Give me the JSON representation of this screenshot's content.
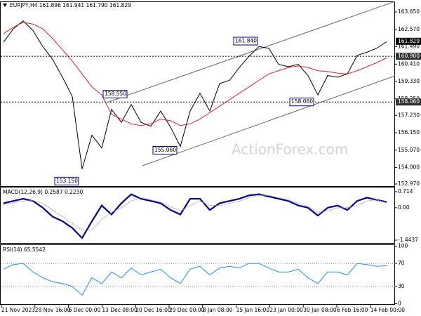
{
  "chart_data": [
    {
      "type": "line",
      "title": "EURJPY,H4 161.896 161.941 161.790 161.829",
      "watermark": "ActionForex.com",
      "series": [
        {
          "color": "#000000",
          "values": [
            161.78,
            162.6,
            163.1,
            162.5,
            161.5,
            160.7,
            159.6,
            158.4,
            153.9,
            156.0,
            155.2,
            157.6,
            156.8,
            157.9,
            156.8,
            156.55,
            157.5,
            156.5,
            155.3,
            157.5,
            158.6,
            157.5,
            159.2,
            159.4,
            160.2,
            160.9,
            161.5,
            161.4,
            160.4,
            160.25,
            160.4,
            159.7,
            158.5,
            159.7,
            159.6,
            159.8,
            160.95,
            161.15,
            161.4,
            161.8
          ]
        },
        {
          "color": "#e8202a",
          "values": [
            162.3,
            162.7,
            163.0,
            162.9,
            162.6,
            162.0,
            161.3,
            160.6,
            159.8,
            159.0,
            158.5,
            157.3,
            157.0,
            156.7,
            156.6,
            156.7,
            157.0,
            156.9,
            156.6,
            156.7,
            157.0,
            157.4,
            157.8,
            158.2,
            158.6,
            159.0,
            159.4,
            159.8,
            160.0,
            160.2,
            160.3,
            160.2,
            160.0,
            159.95,
            159.85,
            159.8,
            160.0,
            160.25,
            160.5,
            160.8
          ]
        }
      ],
      "ylim": [
        152.97,
        163.65
      ],
      "yticks": [
        {
          "value": 163.65,
          "label": "163.650"
        },
        {
          "value": 162.57,
          "label": "162.570"
        },
        {
          "value": 161.49,
          "label": "161.490"
        },
        {
          "value": 160.41,
          "label": "160.410"
        },
        {
          "value": 159.33,
          "label": "159.330"
        },
        {
          "value": 158.25,
          "label": "158.250"
        },
        {
          "value": 157.23,
          "label": "157.230"
        },
        {
          "value": 156.15,
          "label": "156.150"
        },
        {
          "value": 155.07,
          "label": "155.070"
        },
        {
          "value": 154.0,
          "label": "154.000"
        },
        {
          "value": 152.97,
          "label": "152.970"
        }
      ],
      "price_labels": [
        {
          "value": 161.829,
          "label": "161.829"
        },
        {
          "value": 160.9,
          "label": "160.900"
        },
        {
          "value": 158.06,
          "label": "158.060"
        }
      ],
      "annotations": [
        {
          "value": 161.84,
          "label": "161.840"
        },
        {
          "value": 158.55,
          "label": "158.550"
        },
        {
          "value": 155.06,
          "label": "155.060"
        },
        {
          "value": 153.15,
          "label": "153.150"
        },
        {
          "value": 158.06,
          "label": "158.060"
        }
      ]
    },
    {
      "type": "line",
      "title": "MACD(12,26,9) 0.2587 0.2230",
      "series": [
        {
          "color": "#00008b",
          "values": [
            0.2,
            0.3,
            0.4,
            0.3,
            0.0,
            -0.4,
            -0.6,
            -0.9,
            -1.35,
            -0.6,
            0.1,
            -0.3,
            0.2,
            0.6,
            0.4,
            0.3,
            0.2,
            -0.1,
            -0.3,
            0.4,
            0.4,
            -0.1,
            0.2,
            0.3,
            0.4,
            0.55,
            0.6,
            0.5,
            0.4,
            0.3,
            0.1,
            0.0,
            -0.35,
            0.0,
            0.1,
            -0.1,
            0.3,
            0.45,
            0.35,
            0.26
          ]
        },
        {
          "color": "#a0a0a0",
          "values": [
            0.15,
            0.22,
            0.3,
            0.32,
            0.2,
            -0.1,
            -0.4,
            -0.7,
            -1.0,
            -1.0,
            -0.5,
            -0.2,
            0.0,
            0.3,
            0.45,
            0.35,
            0.25,
            0.05,
            -0.15,
            0.1,
            0.3,
            0.1,
            0.1,
            0.2,
            0.3,
            0.45,
            0.55,
            0.55,
            0.45,
            0.35,
            0.2,
            0.05,
            -0.2,
            -0.15,
            0.0,
            0.0,
            0.1,
            0.3,
            0.35,
            0.22
          ]
        }
      ],
      "ylim": [
        -1.4437,
        0.714
      ],
      "yticks": [
        0.714,
        {
          "value": 0,
          "label": "0.00"
        },
        -1.4437
      ]
    },
    {
      "type": "line",
      "title": "RSI(14) 65.5542",
      "series": [
        {
          "color": "#1e90ff",
          "values": [
            60,
            68,
            70,
            55,
            45,
            38,
            35,
            30,
            15,
            45,
            35,
            55,
            45,
            62,
            50,
            55,
            60,
            45,
            35,
            60,
            65,
            50,
            62,
            65,
            62,
            70,
            70,
            62,
            55,
            55,
            60,
            45,
            35,
            55,
            55,
            50,
            70,
            68,
            65,
            66
          ]
        }
      ],
      "ylim": [
        0,
        100
      ],
      "yticks": [
        0,
        30,
        70,
        100
      ],
      "levels": [
        70,
        30
      ],
      "time_axis": [
        "21 Nov 2023",
        "28 Nov 16:00",
        "6 Dec 00:00",
        "13 Dec 08:00",
        "20 Dec 16:00",
        "29 Dec 00:00",
        "8 Jan 08:00",
        "15 Jan 16:00",
        "23 Jan 00:00",
        "30 Jan 08:00",
        "6 Feb 16:00",
        "14 Feb 00:00"
      ]
    }
  ]
}
